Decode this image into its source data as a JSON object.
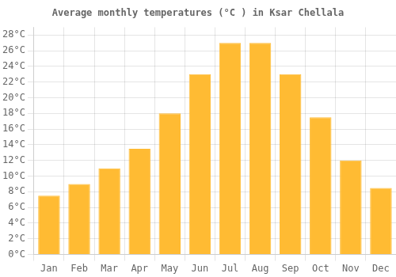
{
  "chart_data": {
    "type": "bar",
    "title": "Average monthly temperatures (°C ) in Ksar Chellala",
    "categories": [
      "Jan",
      "Feb",
      "Mar",
      "Apr",
      "May",
      "Jun",
      "Jul",
      "Aug",
      "Sep",
      "Oct",
      "Nov",
      "Dec"
    ],
    "values": [
      7.5,
      9.0,
      11.0,
      13.5,
      18.0,
      23.0,
      27.0,
      27.0,
      23.0,
      17.5,
      12.0,
      8.5
    ],
    "color": "#FFBB33",
    "ylim": [
      0,
      29
    ],
    "yticks": [
      {
        "value": 0,
        "label": "0°C"
      },
      {
        "value": 2,
        "label": "2°C"
      },
      {
        "value": 4,
        "label": "4°C"
      },
      {
        "value": 6,
        "label": "6°C"
      },
      {
        "value": 8,
        "label": "8°C"
      },
      {
        "value": 10,
        "label": "10°C"
      },
      {
        "value": 12,
        "label": "12°C"
      },
      {
        "value": 14,
        "label": "14°C"
      },
      {
        "value": 16,
        "label": "16°C"
      },
      {
        "value": 18,
        "label": "18°C"
      },
      {
        "value": 20,
        "label": "20°C"
      },
      {
        "value": 22,
        "label": "22°C"
      },
      {
        "value": 24,
        "label": "24°C"
      },
      {
        "value": 26,
        "label": "26°C"
      },
      {
        "value": 28,
        "label": "28°C"
      }
    ],
    "grid": true
  }
}
